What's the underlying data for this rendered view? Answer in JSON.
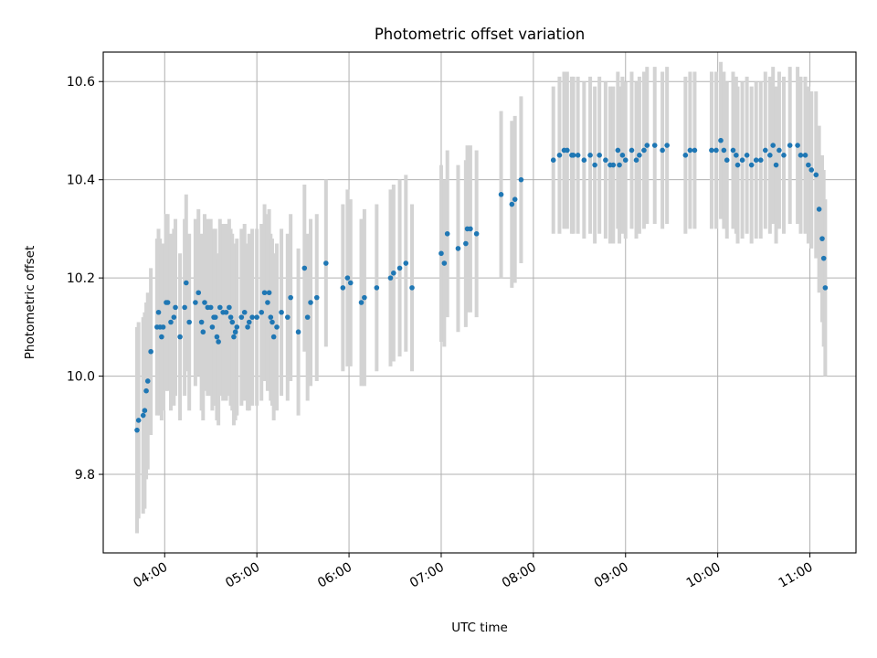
{
  "chart_data": {
    "type": "scatter",
    "title": "Photometric offset variation",
    "xlabel": "UTC time",
    "ylabel": "Photometric offset",
    "x_ticks": [
      "04:00",
      "05:00",
      "06:00",
      "07:00",
      "08:00",
      "09:00",
      "10:00",
      "11:00"
    ],
    "y_ticks": [
      "9.8",
      "10.0",
      "10.2",
      "10.4",
      "10.6"
    ],
    "xlim": [
      "03:20",
      "11:30"
    ],
    "ylim": [
      9.64,
      10.66
    ],
    "grid": true,
    "colors": {
      "points": "#1f77b4",
      "errorbars": "#d3d3d3",
      "grid": "#b0b0b0"
    },
    "points": [
      {
        "t": "03:42",
        "y": 9.89,
        "err": 0.21
      },
      {
        "t": "03:43",
        "y": 9.91,
        "err": 0.2
      },
      {
        "t": "03:46",
        "y": 9.92,
        "err": 0.2
      },
      {
        "t": "03:47",
        "y": 9.93,
        "err": 0.2
      },
      {
        "t": "03:48",
        "y": 9.97,
        "err": 0.18
      },
      {
        "t": "03:49",
        "y": 9.99,
        "err": 0.18
      },
      {
        "t": "03:51",
        "y": 10.05,
        "err": 0.17
      },
      {
        "t": "03:55",
        "y": 10.1,
        "err": 0.18
      },
      {
        "t": "03:56",
        "y": 10.13,
        "err": 0.17
      },
      {
        "t": "03:57",
        "y": 10.1,
        "err": 0.18
      },
      {
        "t": "03:58",
        "y": 10.08,
        "err": 0.17
      },
      {
        "t": "03:59",
        "y": 10.1,
        "err": 0.17
      },
      {
        "t": "04:01",
        "y": 10.15,
        "err": 0.18
      },
      {
        "t": "04:02",
        "y": 10.15,
        "err": 0.18
      },
      {
        "t": "04:04",
        "y": 10.11,
        "err": 0.18
      },
      {
        "t": "04:06",
        "y": 10.12,
        "err": 0.18
      },
      {
        "t": "04:07",
        "y": 10.14,
        "err": 0.18
      },
      {
        "t": "04:10",
        "y": 10.08,
        "err": 0.17
      },
      {
        "t": "04:13",
        "y": 10.14,
        "err": 0.18
      },
      {
        "t": "04:14",
        "y": 10.19,
        "err": 0.18
      },
      {
        "t": "04:16",
        "y": 10.11,
        "err": 0.18
      },
      {
        "t": "04:20",
        "y": 10.15,
        "err": 0.17
      },
      {
        "t": "04:22",
        "y": 10.17,
        "err": 0.17
      },
      {
        "t": "04:24",
        "y": 10.11,
        "err": 0.18
      },
      {
        "t": "04:25",
        "y": 10.09,
        "err": 0.18
      },
      {
        "t": "04:26",
        "y": 10.15,
        "err": 0.18
      },
      {
        "t": "04:28",
        "y": 10.14,
        "err": 0.18
      },
      {
        "t": "04:30",
        "y": 10.14,
        "err": 0.18
      },
      {
        "t": "04:31",
        "y": 10.1,
        "err": 0.17
      },
      {
        "t": "04:32",
        "y": 10.12,
        "err": 0.18
      },
      {
        "t": "04:33",
        "y": 10.12,
        "err": 0.18
      },
      {
        "t": "04:34",
        "y": 10.08,
        "err": 0.17
      },
      {
        "t": "04:35",
        "y": 10.07,
        "err": 0.17
      },
      {
        "t": "04:36",
        "y": 10.14,
        "err": 0.18
      },
      {
        "t": "04:38",
        "y": 10.13,
        "err": 0.18
      },
      {
        "t": "04:40",
        "y": 10.13,
        "err": 0.18
      },
      {
        "t": "04:42",
        "y": 10.14,
        "err": 0.18
      },
      {
        "t": "04:43",
        "y": 10.12,
        "err": 0.18
      },
      {
        "t": "04:44",
        "y": 10.11,
        "err": 0.18
      },
      {
        "t": "04:45",
        "y": 10.08,
        "err": 0.18
      },
      {
        "t": "04:46",
        "y": 10.09,
        "err": 0.18
      },
      {
        "t": "04:47",
        "y": 10.1,
        "err": 0.18
      },
      {
        "t": "04:50",
        "y": 10.12,
        "err": 0.18
      },
      {
        "t": "04:52",
        "y": 10.13,
        "err": 0.18
      },
      {
        "t": "04:54",
        "y": 10.1,
        "err": 0.17
      },
      {
        "t": "04:55",
        "y": 10.11,
        "err": 0.18
      },
      {
        "t": "04:57",
        "y": 10.12,
        "err": 0.18
      },
      {
        "t": "05:00",
        "y": 10.12,
        "err": 0.18
      },
      {
        "t": "05:03",
        "y": 10.13,
        "err": 0.18
      },
      {
        "t": "05:05",
        "y": 10.17,
        "err": 0.18
      },
      {
        "t": "05:07",
        "y": 10.15,
        "err": 0.18
      },
      {
        "t": "05:08",
        "y": 10.17,
        "err": 0.17
      },
      {
        "t": "05:09",
        "y": 10.12,
        "err": 0.17
      },
      {
        "t": "05:10",
        "y": 10.11,
        "err": 0.17
      },
      {
        "t": "05:11",
        "y": 10.08,
        "err": 0.17
      },
      {
        "t": "05:13",
        "y": 10.1,
        "err": 0.17
      },
      {
        "t": "05:16",
        "y": 10.13,
        "err": 0.17
      },
      {
        "t": "05:20",
        "y": 10.12,
        "err": 0.17
      },
      {
        "t": "05:22",
        "y": 10.16,
        "err": 0.17
      },
      {
        "t": "05:27",
        "y": 10.09,
        "err": 0.17
      },
      {
        "t": "05:31",
        "y": 10.22,
        "err": 0.17
      },
      {
        "t": "05:33",
        "y": 10.12,
        "err": 0.17
      },
      {
        "t": "05:35",
        "y": 10.15,
        "err": 0.17
      },
      {
        "t": "05:39",
        "y": 10.16,
        "err": 0.17
      },
      {
        "t": "05:45",
        "y": 10.23,
        "err": 0.17
      },
      {
        "t": "05:56",
        "y": 10.18,
        "err": 0.17
      },
      {
        "t": "05:59",
        "y": 10.2,
        "err": 0.18
      },
      {
        "t": "06:01",
        "y": 10.19,
        "err": 0.17
      },
      {
        "t": "06:08",
        "y": 10.15,
        "err": 0.17
      },
      {
        "t": "06:10",
        "y": 10.16,
        "err": 0.18
      },
      {
        "t": "06:18",
        "y": 10.18,
        "err": 0.17
      },
      {
        "t": "06:27",
        "y": 10.2,
        "err": 0.18
      },
      {
        "t": "06:29",
        "y": 10.21,
        "err": 0.18
      },
      {
        "t": "06:33",
        "y": 10.22,
        "err": 0.18
      },
      {
        "t": "06:37",
        "y": 10.23,
        "err": 0.18
      },
      {
        "t": "06:41",
        "y": 10.18,
        "err": 0.17
      },
      {
        "t": "07:00",
        "y": 10.25,
        "err": 0.18
      },
      {
        "t": "07:02",
        "y": 10.23,
        "err": 0.17
      },
      {
        "t": "07:04",
        "y": 10.29,
        "err": 0.17
      },
      {
        "t": "07:11",
        "y": 10.26,
        "err": 0.17
      },
      {
        "t": "07:16",
        "y": 10.27,
        "err": 0.17
      },
      {
        "t": "07:17",
        "y": 10.3,
        "err": 0.17
      },
      {
        "t": "07:19",
        "y": 10.3,
        "err": 0.17
      },
      {
        "t": "07:23",
        "y": 10.29,
        "err": 0.17
      },
      {
        "t": "07:39",
        "y": 10.37,
        "err": 0.17
      },
      {
        "t": "07:46",
        "y": 10.35,
        "err": 0.17
      },
      {
        "t": "07:48",
        "y": 10.36,
        "err": 0.17
      },
      {
        "t": "07:52",
        "y": 10.4,
        "err": 0.17
      },
      {
        "t": "08:13",
        "y": 10.44,
        "err": 0.15
      },
      {
        "t": "08:17",
        "y": 10.45,
        "err": 0.16
      },
      {
        "t": "08:20",
        "y": 10.46,
        "err": 0.16
      },
      {
        "t": "08:22",
        "y": 10.46,
        "err": 0.16
      },
      {
        "t": "08:25",
        "y": 10.45,
        "err": 0.16
      },
      {
        "t": "08:26",
        "y": 10.45,
        "err": 0.16
      },
      {
        "t": "08:29",
        "y": 10.45,
        "err": 0.16
      },
      {
        "t": "08:33",
        "y": 10.44,
        "err": 0.16
      },
      {
        "t": "08:37",
        "y": 10.45,
        "err": 0.16
      },
      {
        "t": "08:40",
        "y": 10.43,
        "err": 0.16
      },
      {
        "t": "08:43",
        "y": 10.45,
        "err": 0.16
      },
      {
        "t": "08:47",
        "y": 10.44,
        "err": 0.16
      },
      {
        "t": "08:50",
        "y": 10.43,
        "err": 0.16
      },
      {
        "t": "08:52",
        "y": 10.43,
        "err": 0.16
      },
      {
        "t": "08:55",
        "y": 10.46,
        "err": 0.16
      },
      {
        "t": "08:56",
        "y": 10.43,
        "err": 0.16
      },
      {
        "t": "08:58",
        "y": 10.45,
        "err": 0.16
      },
      {
        "t": "09:00",
        "y": 10.44,
        "err": 0.16
      },
      {
        "t": "09:04",
        "y": 10.46,
        "err": 0.16
      },
      {
        "t": "09:07",
        "y": 10.44,
        "err": 0.16
      },
      {
        "t": "09:09",
        "y": 10.45,
        "err": 0.16
      },
      {
        "t": "09:12",
        "y": 10.46,
        "err": 0.16
      },
      {
        "t": "09:14",
        "y": 10.47,
        "err": 0.16
      },
      {
        "t": "09:19",
        "y": 10.47,
        "err": 0.16
      },
      {
        "t": "09:24",
        "y": 10.46,
        "err": 0.16
      },
      {
        "t": "09:27",
        "y": 10.47,
        "err": 0.16
      },
      {
        "t": "09:39",
        "y": 10.45,
        "err": 0.16
      },
      {
        "t": "09:42",
        "y": 10.46,
        "err": 0.16
      },
      {
        "t": "09:45",
        "y": 10.46,
        "err": 0.16
      },
      {
        "t": "09:56",
        "y": 10.46,
        "err": 0.16
      },
      {
        "t": "09:59",
        "y": 10.46,
        "err": 0.16
      },
      {
        "t": "10:02",
        "y": 10.48,
        "err": 0.16
      },
      {
        "t": "10:04",
        "y": 10.46,
        "err": 0.16
      },
      {
        "t": "10:06",
        "y": 10.44,
        "err": 0.16
      },
      {
        "t": "10:10",
        "y": 10.46,
        "err": 0.16
      },
      {
        "t": "10:12",
        "y": 10.45,
        "err": 0.16
      },
      {
        "t": "10:13",
        "y": 10.43,
        "err": 0.16
      },
      {
        "t": "10:16",
        "y": 10.44,
        "err": 0.16
      },
      {
        "t": "10:19",
        "y": 10.45,
        "err": 0.16
      },
      {
        "t": "10:22",
        "y": 10.43,
        "err": 0.16
      },
      {
        "t": "10:25",
        "y": 10.44,
        "err": 0.16
      },
      {
        "t": "10:28",
        "y": 10.44,
        "err": 0.16
      },
      {
        "t": "10:31",
        "y": 10.46,
        "err": 0.16
      },
      {
        "t": "10:34",
        "y": 10.45,
        "err": 0.16
      },
      {
        "t": "10:36",
        "y": 10.47,
        "err": 0.16
      },
      {
        "t": "10:38",
        "y": 10.43,
        "err": 0.16
      },
      {
        "t": "10:40",
        "y": 10.46,
        "err": 0.16
      },
      {
        "t": "10:43",
        "y": 10.45,
        "err": 0.16
      },
      {
        "t": "10:47",
        "y": 10.47,
        "err": 0.16
      },
      {
        "t": "10:52",
        "y": 10.47,
        "err": 0.16
      },
      {
        "t": "10:54",
        "y": 10.45,
        "err": 0.16
      },
      {
        "t": "10:57",
        "y": 10.45,
        "err": 0.16
      },
      {
        "t": "10:59",
        "y": 10.43,
        "err": 0.16
      },
      {
        "t": "11:01",
        "y": 10.42,
        "err": 0.16
      },
      {
        "t": "11:04",
        "y": 10.41,
        "err": 0.17
      },
      {
        "t": "11:06",
        "y": 10.34,
        "err": 0.17
      },
      {
        "t": "11:08",
        "y": 10.28,
        "err": 0.17
      },
      {
        "t": "11:09",
        "y": 10.24,
        "err": 0.18
      },
      {
        "t": "11:10",
        "y": 10.18,
        "err": 0.18
      }
    ]
  }
}
